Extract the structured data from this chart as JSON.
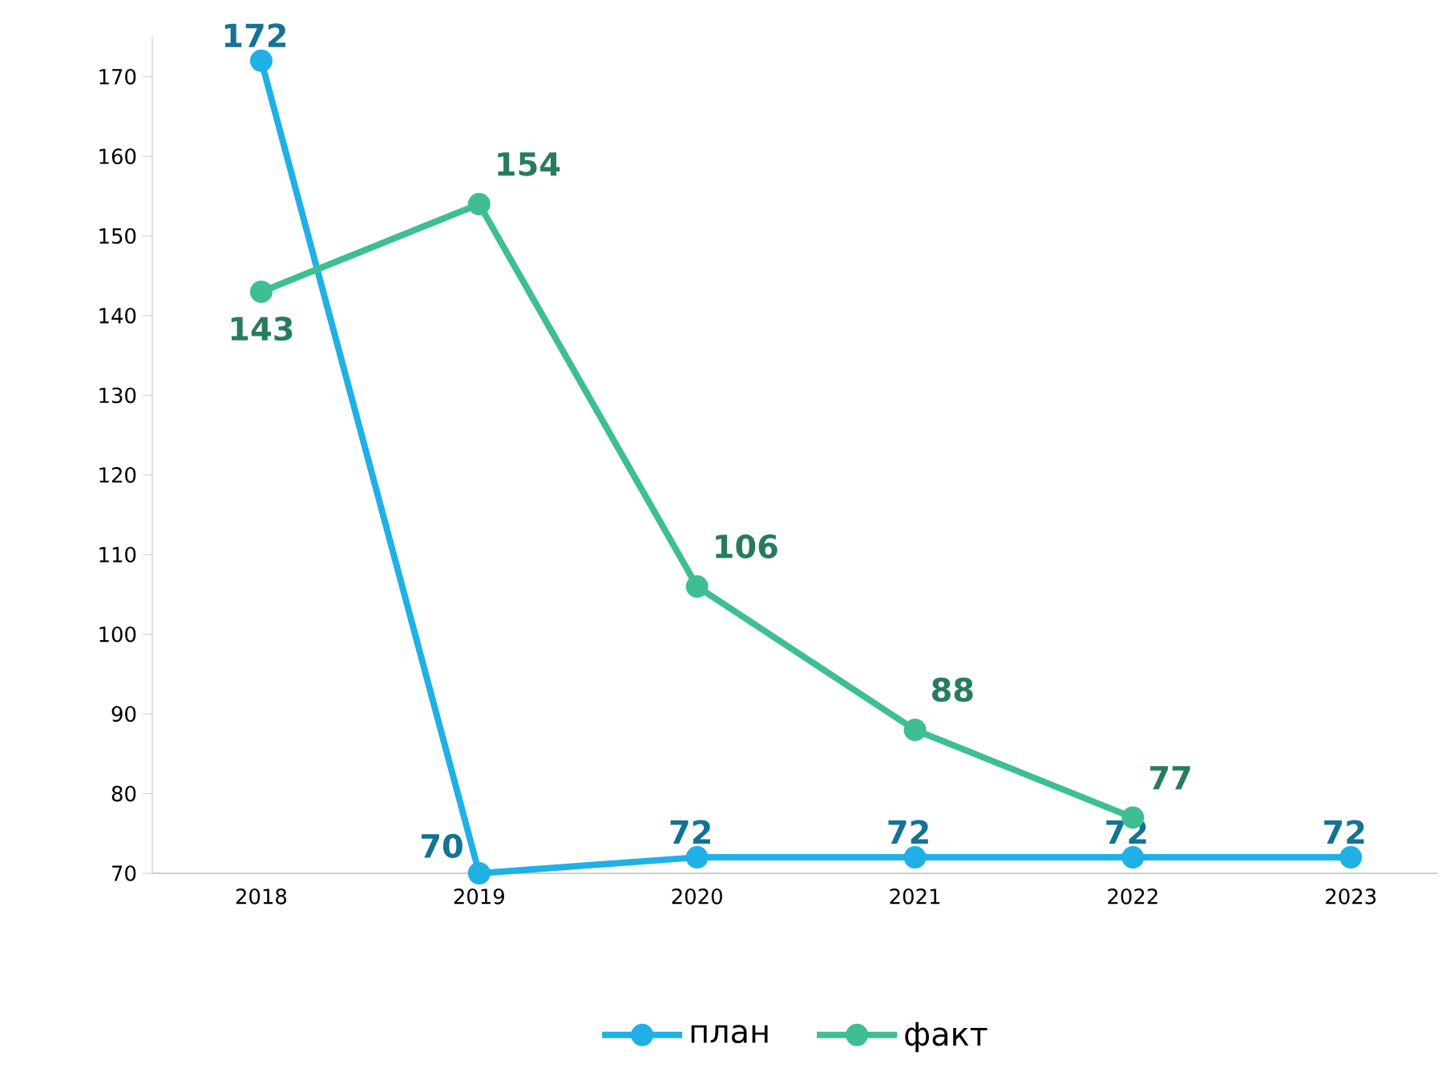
{
  "chart_data": {
    "type": "line",
    "categories": [
      "2018",
      "2019",
      "2020",
      "2021",
      "2022",
      "2023"
    ],
    "series": [
      {
        "name": "план",
        "color": "#1fb0e6",
        "values": [
          172,
          70,
          72,
          72,
          72,
          72
        ]
      },
      {
        "name": "факт",
        "color": "#3dbf91",
        "values": [
          143,
          154,
          106,
          88,
          77,
          null
        ]
      }
    ],
    "ylim": [
      70,
      175
    ],
    "yticks": [
      70,
      80,
      90,
      100,
      110,
      120,
      130,
      140,
      150,
      160,
      170
    ],
    "data_labels": true,
    "marker": "circle",
    "grid": false,
    "legend": "bottom"
  }
}
